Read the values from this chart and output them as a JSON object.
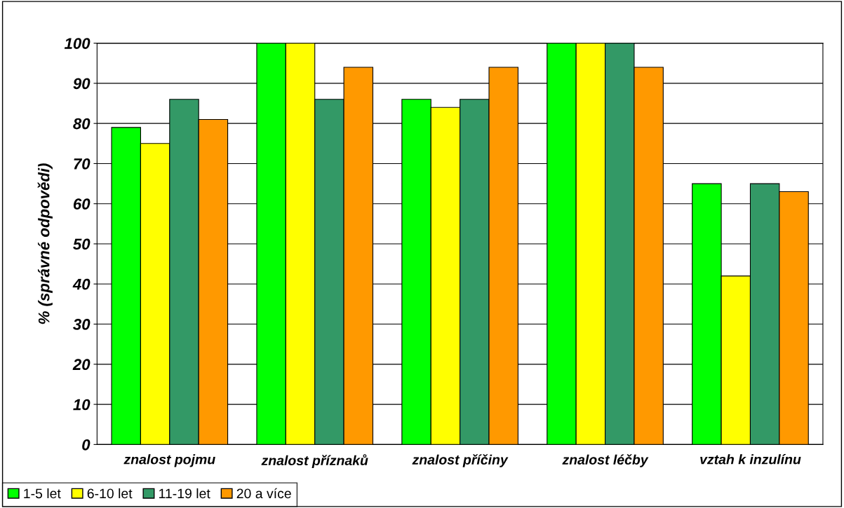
{
  "chart_data": {
    "type": "bar",
    "ylabel": "% (správné odpovědi)",
    "categories": [
      "znalost pojmu",
      "znalost příznaků",
      "znalost příčiny",
      "znalost léčby",
      "vztah k inzulínu"
    ],
    "series": [
      {
        "name": "1-5 let",
        "color": "#00ff00",
        "values": [
          79,
          100,
          86,
          100,
          65
        ]
      },
      {
        "name": "6-10 let",
        "color": "#ffff00",
        "values": [
          75,
          100,
          84,
          100,
          42
        ]
      },
      {
        "name": "11-19 let",
        "color": "#339966",
        "values": [
          86,
          86,
          86,
          100,
          65
        ]
      },
      {
        "name": "20 a více",
        "color": "#ff9900",
        "values": [
          81,
          94,
          94,
          94,
          63
        ]
      }
    ],
    "ylim": [
      0,
      100
    ],
    "yticks": [
      0,
      10,
      20,
      30,
      40,
      50,
      60,
      70,
      80,
      90,
      100
    ],
    "grid": "y",
    "legend": "bottom left"
  }
}
